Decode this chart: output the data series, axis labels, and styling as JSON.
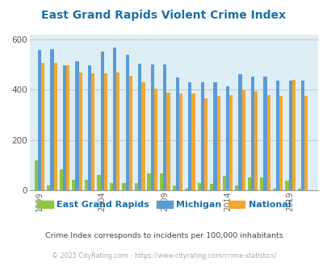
{
  "title": "East Grand Rapids Violent Crime Index",
  "title_color": "#1a6fa8",
  "background_color": "#ddeef5",
  "fig_background": "#ffffff",
  "subtitle": "Crime Index corresponds to incidents per 100,000 inhabitants",
  "footer": "© 2025 CityRating.com - https://www.cityrating.com/crime-statistics/",
  "years": [
    1999,
    2000,
    2001,
    2002,
    2003,
    2004,
    2005,
    2006,
    2007,
    2008,
    2009,
    2010,
    2011,
    2012,
    2013,
    2014,
    2015,
    2016,
    2017,
    2018,
    2019,
    2020
  ],
  "egr": [
    120,
    20,
    83,
    42,
    40,
    62,
    28,
    30,
    28,
    68,
    68,
    18,
    5,
    30,
    27,
    58,
    18,
    52,
    52,
    5,
    38,
    5
  ],
  "michigan": [
    560,
    562,
    497,
    513,
    498,
    552,
    568,
    538,
    503,
    500,
    500,
    448,
    430,
    430,
    430,
    415,
    462,
    452,
    452,
    438,
    438,
    438
  ],
  "national": [
    508,
    508,
    499,
    468,
    465,
    466,
    469,
    455,
    430,
    405,
    390,
    385,
    385,
    365,
    375,
    380,
    400,
    396,
    380,
    375,
    440,
    375
  ],
  "egr_color": "#8dc63f",
  "michigan_color": "#5b9bd5",
  "national_color": "#f0a830",
  "ylim": [
    0,
    620
  ],
  "yticks": [
    0,
    200,
    400,
    600
  ],
  "xtick_years": [
    1999,
    2004,
    2009,
    2014,
    2019
  ],
  "legend_labels": [
    "East Grand Rapids",
    "Michigan",
    "National"
  ],
  "subtitle_color": "#444444",
  "footer_color": "#aaaaaa",
  "grid_color": "#c8a0a0"
}
